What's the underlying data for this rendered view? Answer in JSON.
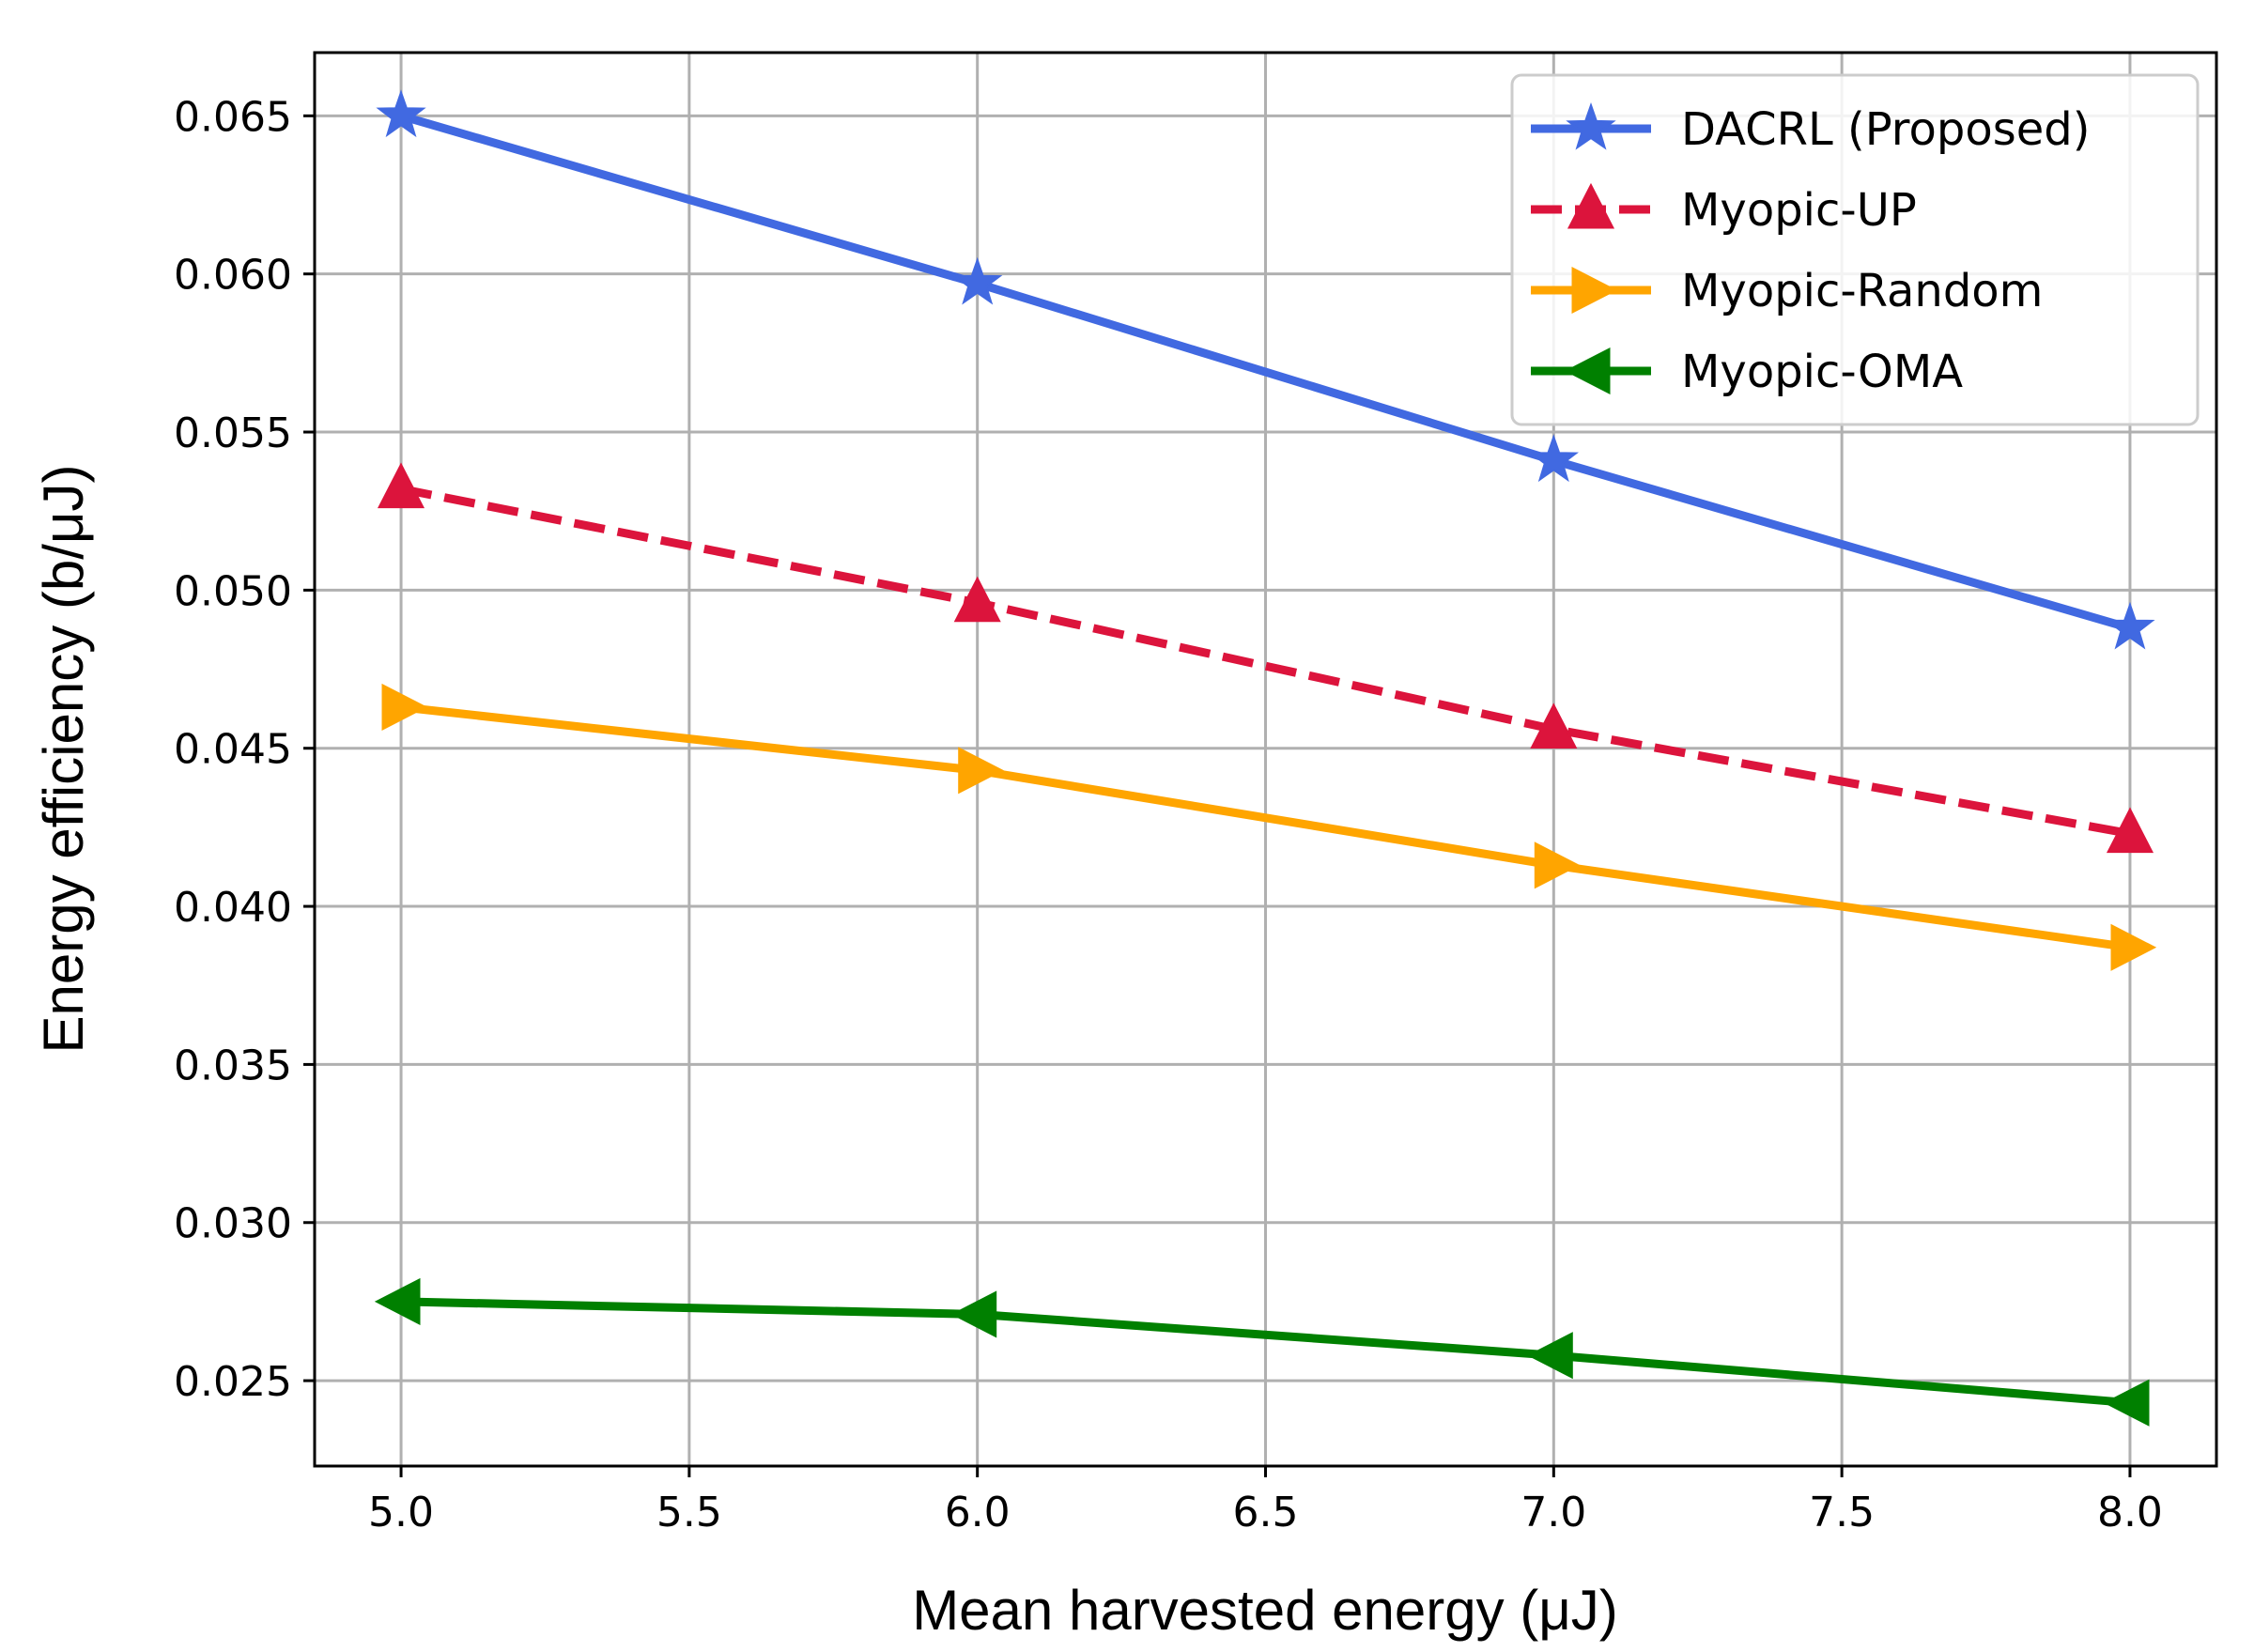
{
  "chart_data": {
    "type": "line",
    "xlabel": "Mean harvested energy (μJ)",
    "ylabel": "Energy efficiency (b/μJ)",
    "xlim": [
      4.85,
      8.15
    ],
    "ylim": [
      0.0223,
      0.067
    ],
    "xticks": [
      5.0,
      5.5,
      6.0,
      6.5,
      7.0,
      7.5,
      8.0
    ],
    "xtick_labels": [
      "5.0",
      "5.5",
      "6.0",
      "6.5",
      "7.0",
      "7.5",
      "8.0"
    ],
    "yticks": [
      0.025,
      0.03,
      0.035,
      0.04,
      0.045,
      0.05,
      0.055,
      0.06,
      0.065
    ],
    "ytick_labels": [
      "0.025",
      "0.030",
      "0.035",
      "0.040",
      "0.045",
      "0.050",
      "0.055",
      "0.060",
      "0.065"
    ],
    "grid": true,
    "legend_position": "top-right",
    "x": [
      5.0,
      6.0,
      7.0,
      8.0
    ],
    "series": [
      {
        "name": "DACRL (Proposed)",
        "values": [
          0.065,
          0.0597,
          0.0541,
          0.0488
        ],
        "color": "#4169e1",
        "marker": "star",
        "dash": "solid"
      },
      {
        "name": "Myopic-UP",
        "values": [
          0.0532,
          0.0496,
          0.0456,
          0.0423
        ],
        "color": "#dc143c",
        "marker": "triangle-up",
        "dash": "dashed"
      },
      {
        "name": "Myopic-Random",
        "values": [
          0.0463,
          0.0443,
          0.0413,
          0.0387
        ],
        "color": "#ffa500",
        "marker": "triangle-right",
        "dash": "solid"
      },
      {
        "name": "Myopic-OMA",
        "values": [
          0.0275,
          0.0271,
          0.0258,
          0.0243
        ],
        "color": "#008000",
        "marker": "triangle-left",
        "dash": "solid"
      }
    ]
  }
}
